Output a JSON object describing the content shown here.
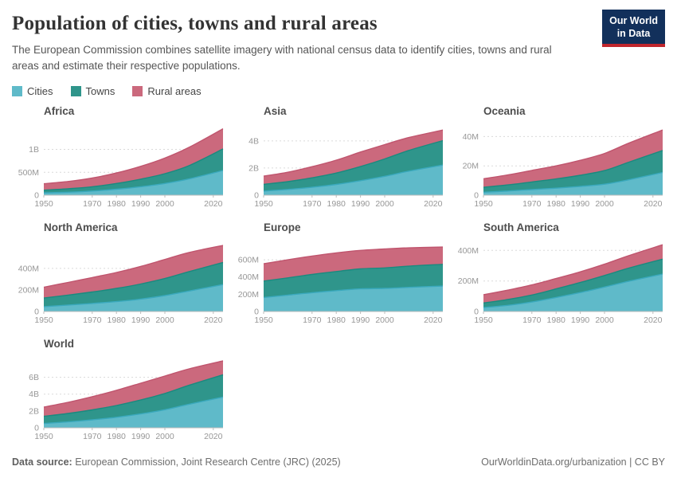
{
  "header": {
    "title": "Population of cities, towns and rural areas",
    "subtitle": "The European Commission combines satellite imagery with national census data to identify cities, towns and rural areas and estimate their respective populations.",
    "logo_line1": "Our World",
    "logo_line2": "in Data"
  },
  "legend": {
    "items": [
      {
        "label": "Cities",
        "color": "#5fbac9"
      },
      {
        "label": "Towns",
        "color": "#2f958b"
      },
      {
        "label": "Rural areas",
        "color": "#cb697d"
      }
    ]
  },
  "palette": {
    "cities_fill": "#5fbac9",
    "cities_line": "#3aa9bd",
    "towns_fill": "#2f958b",
    "towns_line": "#1a8a7f",
    "rural_fill": "#cb697d",
    "rural_line": "#c0556e",
    "grid": "#dadada",
    "axis": "#bcbcbc",
    "tick_label": "#979797"
  },
  "chart_data": [
    {
      "type": "area",
      "stacked": true,
      "title": "Africa",
      "unit": "millions of people",
      "x": [
        1950,
        1960,
        1970,
        1980,
        1990,
        2000,
        2010,
        2024
      ],
      "series": [
        {
          "name": "Cities",
          "values": [
            50,
            65,
            90,
            130,
            185,
            255,
            355,
            540
          ]
        },
        {
          "name": "Towns",
          "values": [
            60,
            75,
            95,
            125,
            165,
            215,
            290,
            470
          ]
        },
        {
          "name": "Rural areas",
          "values": [
            140,
            160,
            190,
            230,
            280,
            340,
            400,
            440
          ]
        }
      ],
      "xlim": [
        1950,
        2024
      ],
      "ylim": [
        0,
        1600
      ],
      "yticks": [
        {
          "v": 0,
          "label": "0"
        },
        {
          "v": 500,
          "label": "500M"
        },
        {
          "v": 1000,
          "label": "1B"
        }
      ],
      "xticks": [
        1950,
        1970,
        1980,
        1990,
        2000,
        2020
      ]
    },
    {
      "type": "area",
      "stacked": true,
      "title": "Asia",
      "unit": "millions of people",
      "x": [
        1950,
        1960,
        1970,
        1980,
        1990,
        2000,
        2010,
        2024
      ],
      "series": [
        {
          "name": "Cities",
          "values": [
            300,
            420,
            580,
            790,
            1070,
            1390,
            1770,
            2220
          ]
        },
        {
          "name": "Towns",
          "values": [
            500,
            580,
            700,
            840,
            1040,
            1280,
            1530,
            1800
          ]
        },
        {
          "name": "Rural areas",
          "values": [
            600,
            690,
            820,
            950,
            1070,
            1060,
            950,
            780
          ]
        }
      ],
      "xlim": [
        1950,
        2024
      ],
      "ylim": [
        0,
        5400
      ],
      "yticks": [
        {
          "v": 0,
          "label": "0"
        },
        {
          "v": 2000,
          "label": "2B"
        },
        {
          "v": 4000,
          "label": "4B"
        }
      ],
      "xticks": [
        1950,
        1970,
        1980,
        1990,
        2000,
        2020
      ]
    },
    {
      "type": "area",
      "stacked": true,
      "title": "Oceania",
      "unit": "millions of people",
      "x": [
        1950,
        1960,
        1970,
        1980,
        1990,
        2000,
        2010,
        2024
      ],
      "series": [
        {
          "name": "Cities",
          "values": [
            2.0,
            2.8,
            3.8,
            4.8,
            6.0,
            7.5,
            10.5,
            15.5
          ]
        },
        {
          "name": "Towns",
          "values": [
            3.4,
            4.2,
            5.2,
            6.3,
            7.6,
            9.3,
            12.0,
            15.0
          ]
        },
        {
          "name": "Rural areas",
          "values": [
            5.8,
            6.8,
            7.9,
            8.9,
            10.2,
            11.7,
            13.0,
            14.0
          ]
        }
      ],
      "xlim": [
        1950,
        2024
      ],
      "ylim": [
        0,
        50
      ],
      "yticks": [
        {
          "v": 0,
          "label": "0"
        },
        {
          "v": 20,
          "label": "20M"
        },
        {
          "v": 40,
          "label": "40M"
        }
      ],
      "xticks": [
        1950,
        1970,
        1980,
        1990,
        2000,
        2020
      ]
    },
    {
      "type": "area",
      "stacked": true,
      "title": "North America",
      "unit": "millions of people",
      "x": [
        1950,
        1960,
        1970,
        1980,
        1990,
        2000,
        2010,
        2024
      ],
      "series": [
        {
          "name": "Cities",
          "values": [
            45,
            60,
            75,
            92,
            115,
            148,
            190,
            250
          ]
        },
        {
          "name": "Towns",
          "values": [
            80,
            92,
            106,
            122,
            140,
            158,
            180,
            205
          ]
        },
        {
          "name": "Rural areas",
          "values": [
            100,
            118,
            134,
            148,
            163,
            177,
            178,
            158
          ]
        }
      ],
      "xlim": [
        1950,
        2024
      ],
      "ylim": [
        0,
        680
      ],
      "yticks": [
        {
          "v": 0,
          "label": "0"
        },
        {
          "v": 200,
          "label": "200M"
        },
        {
          "v": 400,
          "label": "400M"
        }
      ],
      "xticks": [
        1950,
        1970,
        1980,
        1990,
        2000,
        2020
      ]
    },
    {
      "type": "area",
      "stacked": true,
      "title": "Europe",
      "unit": "millions of people",
      "x": [
        1950,
        1960,
        1970,
        1980,
        1990,
        2000,
        2010,
        2024
      ],
      "series": [
        {
          "name": "Cities",
          "values": [
            163,
            190,
            218,
            242,
            262,
            268,
            280,
            295
          ]
        },
        {
          "name": "Towns",
          "values": [
            190,
            200,
            212,
            222,
            232,
            237,
            246,
            252
          ]
        },
        {
          "name": "Rural areas",
          "values": [
            200,
            210,
            213,
            216,
            215,
            220,
            212,
            200
          ]
        }
      ],
      "xlim": [
        1950,
        2024
      ],
      "ylim": [
        0,
        850
      ],
      "yticks": [
        {
          "v": 0,
          "label": "0"
        },
        {
          "v": 200,
          "label": "200M"
        },
        {
          "v": 400,
          "label": "400M"
        },
        {
          "v": 600,
          "label": "600M"
        }
      ],
      "xticks": [
        1950,
        1970,
        1980,
        1990,
        2000,
        2020
      ]
    },
    {
      "type": "area",
      "stacked": true,
      "title": "South America",
      "unit": "millions of people",
      "x": [
        1950,
        1960,
        1970,
        1980,
        1990,
        2000,
        2010,
        2024
      ],
      "series": [
        {
          "name": "Cities",
          "values": [
            26,
            40,
            62,
            92,
            124,
            160,
            198,
            245
          ]
        },
        {
          "name": "Towns",
          "values": [
            30,
            38,
            46,
            56,
            66,
            76,
            86,
            98
          ]
        },
        {
          "name": "Rural areas",
          "values": [
            54,
            62,
            66,
            68,
            70,
            74,
            82,
            94
          ]
        }
      ],
      "xlim": [
        1950,
        2024
      ],
      "ylim": [
        0,
        480
      ],
      "yticks": [
        {
          "v": 0,
          "label": "0"
        },
        {
          "v": 200,
          "label": "200M"
        },
        {
          "v": 400,
          "label": "400M"
        }
      ],
      "xticks": [
        1950,
        1970,
        1980,
        1990,
        2000,
        2020
      ]
    },
    {
      "type": "area",
      "stacked": true,
      "title": "World",
      "unit": "millions of people",
      "x": [
        1950,
        1960,
        1970,
        1980,
        1990,
        2000,
        2010,
        2024
      ],
      "series": [
        {
          "name": "Cities",
          "values": [
            510,
            700,
            950,
            1250,
            1650,
            2150,
            2800,
            3650
          ]
        },
        {
          "name": "Towns",
          "values": [
            850,
            1000,
            1180,
            1400,
            1650,
            1930,
            2250,
            2650
          ]
        },
        {
          "name": "Rural areas",
          "values": [
            1100,
            1330,
            1570,
            1800,
            2000,
            2070,
            1950,
            1650
          ]
        }
      ],
      "xlim": [
        1950,
        2024
      ],
      "ylim": [
        0,
        8700
      ],
      "yticks": [
        {
          "v": 0,
          "label": "0"
        },
        {
          "v": 2000,
          "label": "2B"
        },
        {
          "v": 4000,
          "label": "4B"
        },
        {
          "v": 6000,
          "label": "6B"
        }
      ],
      "xticks": [
        1950,
        1970,
        1980,
        1990,
        2000,
        2020
      ]
    }
  ],
  "footer": {
    "source_label": "Data source:",
    "source_text": "European Commission, Joint Research Centre (JRC) (2025)",
    "link": "OurWorldinData.org/urbanization | CC BY"
  }
}
